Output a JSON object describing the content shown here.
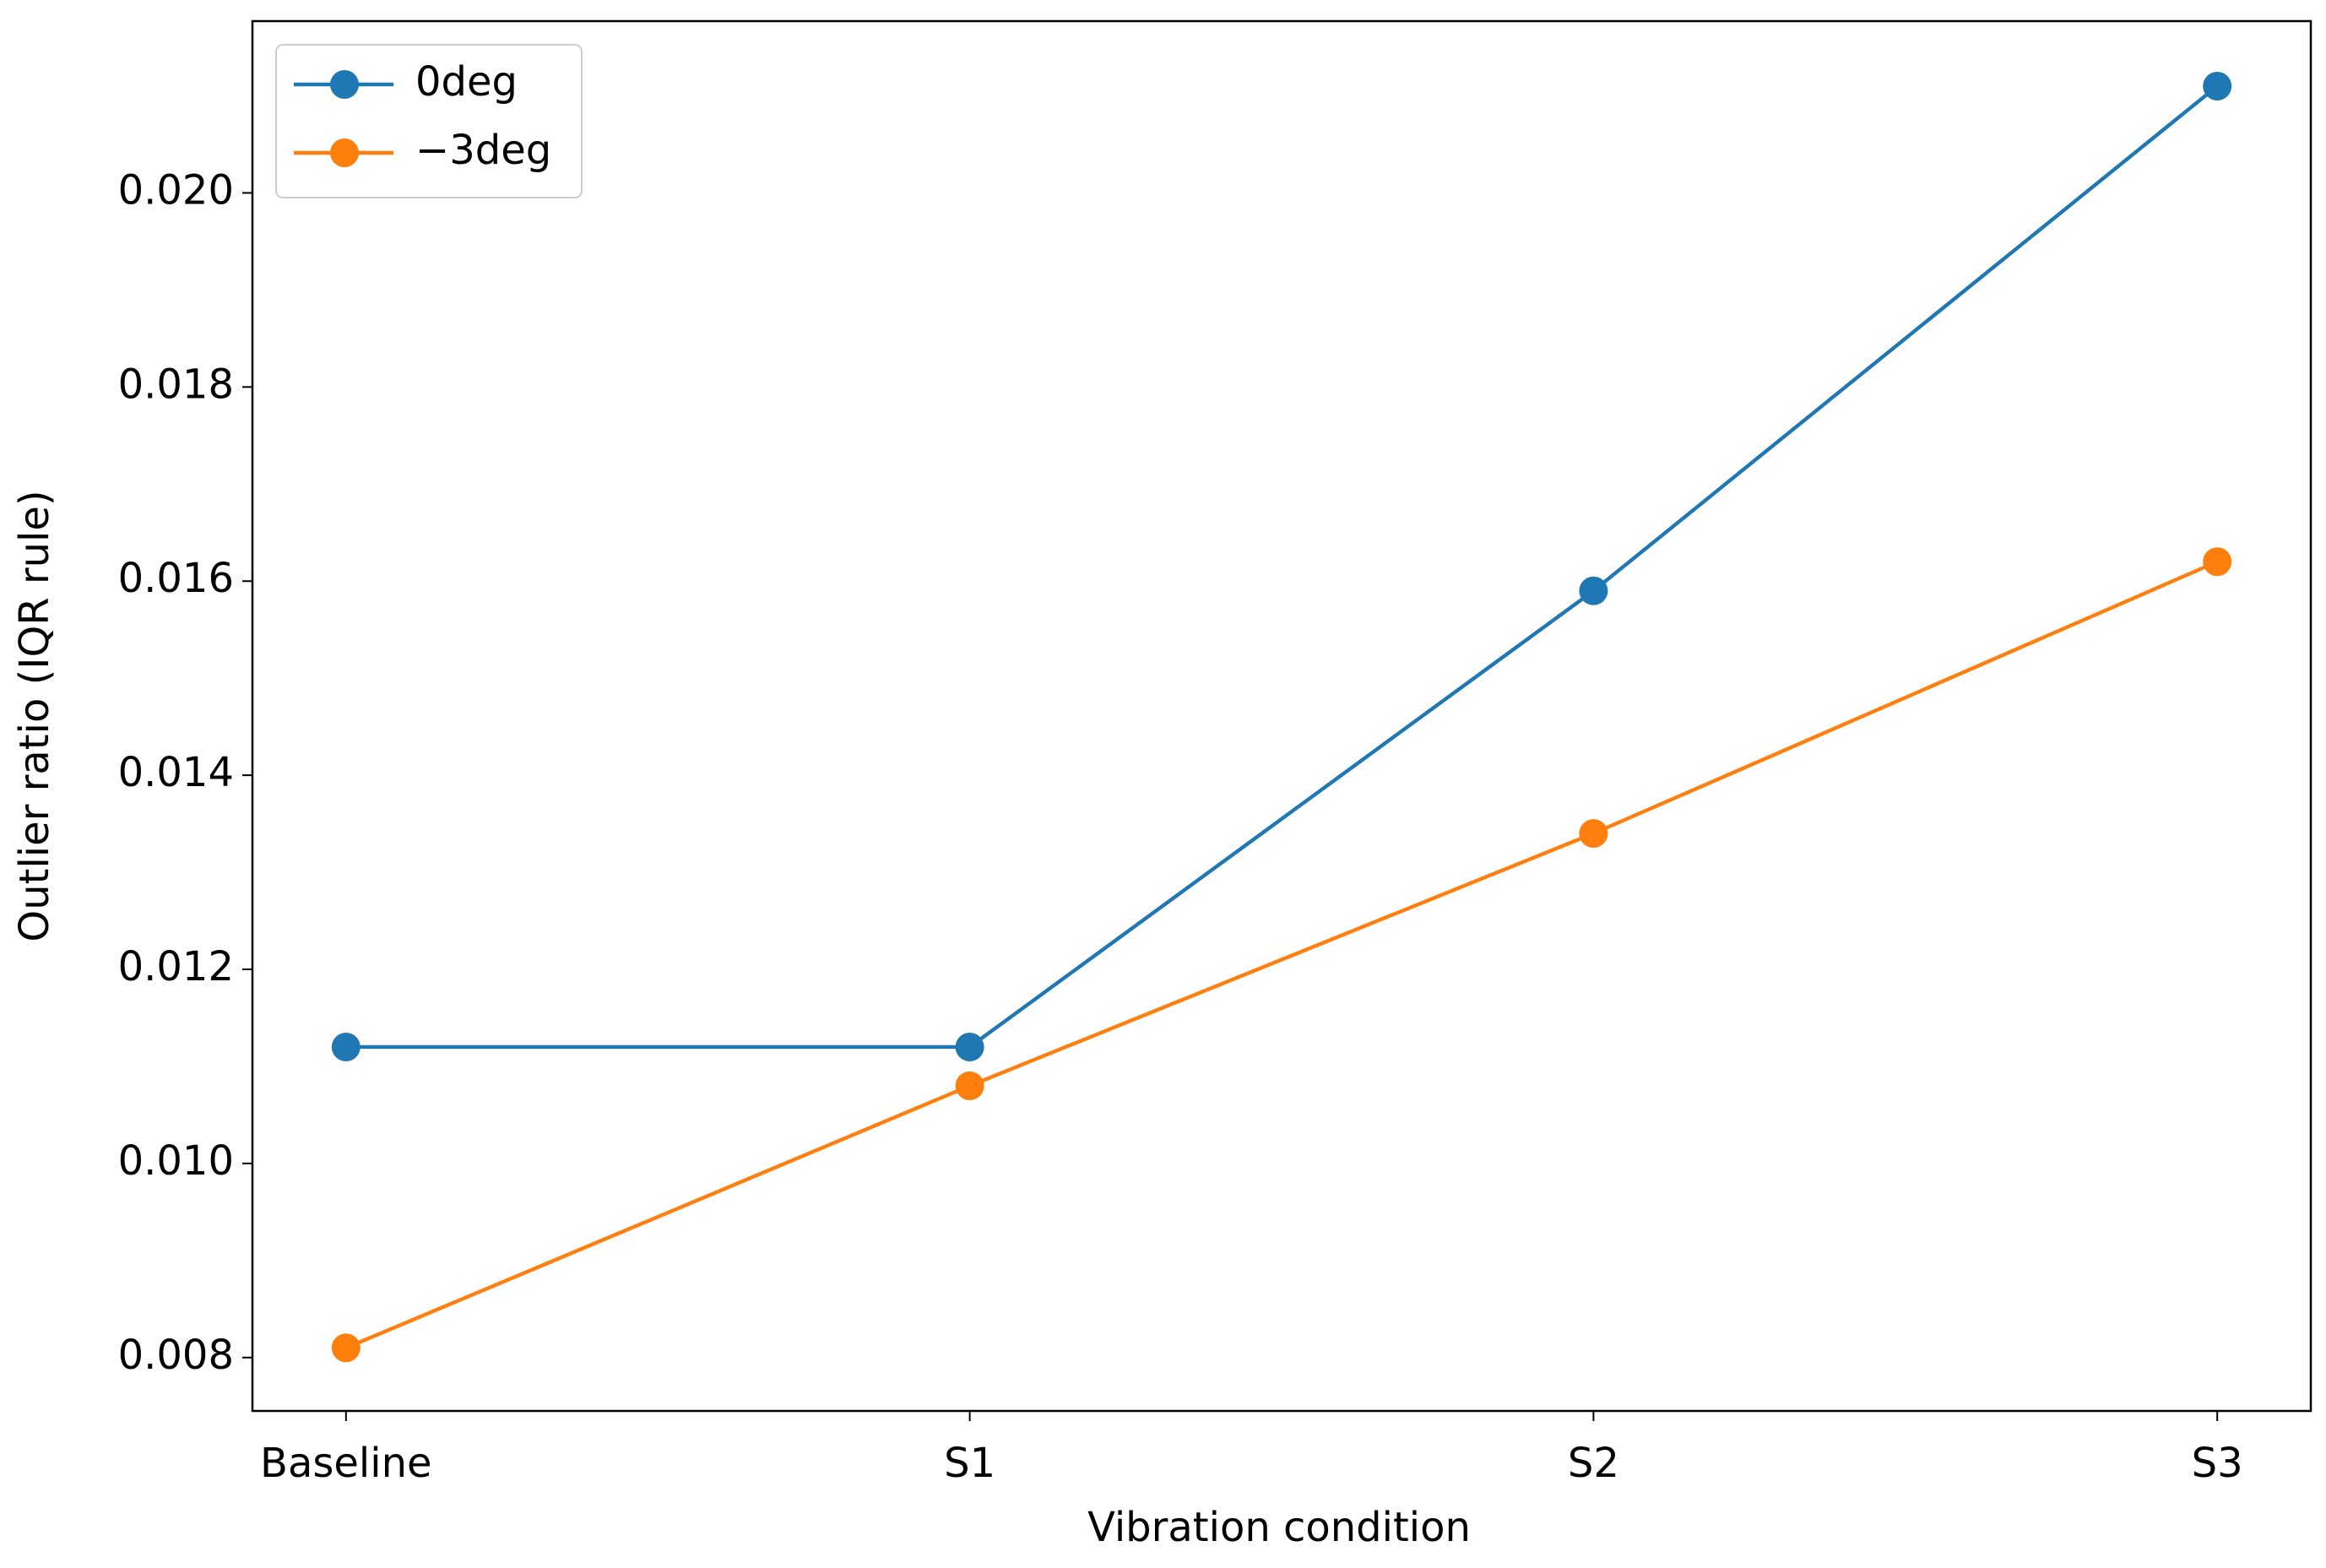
{
  "chart_data": {
    "type": "line",
    "x_label": "Vibration condition",
    "y_label": "Outlier ratio (IQR rule)",
    "categories": [
      "Baseline",
      "S1",
      "S2",
      "S3"
    ],
    "series": [
      {
        "name": "0deg",
        "color": "#1f77b4",
        "values": [
          0.0112,
          0.0112,
          0.0159,
          0.0211
        ]
      },
      {
        "name": "−3deg",
        "color": "#ff7f0e",
        "values": [
          0.0081,
          0.0108,
          0.0134,
          0.0162
        ]
      }
    ],
    "ylim": [
      0.00745,
      0.02177
    ],
    "yticks": [
      {
        "value": 0.008,
        "label": "0.008"
      },
      {
        "value": 0.01,
        "label": "0.010"
      },
      {
        "value": 0.012,
        "label": "0.012"
      },
      {
        "value": 0.014,
        "label": "0.014"
      },
      {
        "value": 0.016,
        "label": "0.016"
      },
      {
        "value": 0.018,
        "label": "0.018"
      },
      {
        "value": 0.02,
        "label": "0.020"
      }
    ],
    "grid": false,
    "legend": "upper left"
  }
}
